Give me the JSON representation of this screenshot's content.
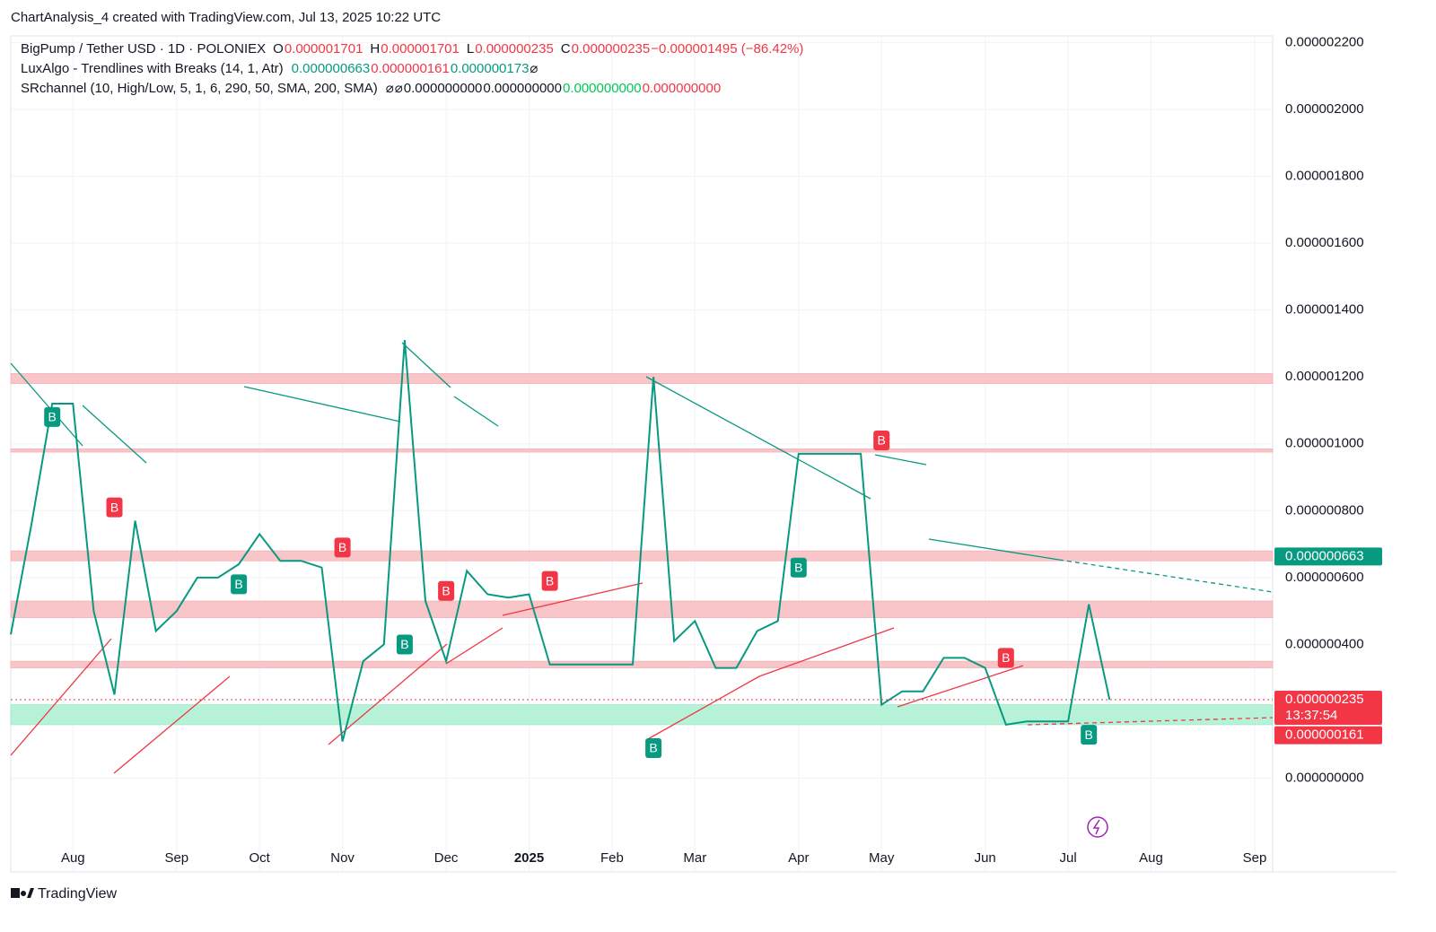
{
  "header": "ChartAnalysis_4 created with TradingView.com, Jul 13, 2025 10:22 UTC",
  "footer": "TradingView",
  "legend_rows": [
    [
      {
        "text": "BigPump / Tether USD · 1D · POLONIEX",
        "color": "#131722"
      },
      {
        "text": "O",
        "color": "#131722"
      },
      {
        "text": "0.000001701",
        "color": "#f23645"
      },
      {
        "text": "H",
        "color": "#131722"
      },
      {
        "text": "0.000001701",
        "color": "#f23645"
      },
      {
        "text": "L",
        "color": "#131722"
      },
      {
        "text": "0.000000235",
        "color": "#f23645"
      },
      {
        "text": "C",
        "color": "#131722"
      },
      {
        "text": "0.000000235",
        "color": "#f23645"
      },
      {
        "text": "−0.000001495 (−86.42%)",
        "color": "#f23645"
      }
    ],
    [
      {
        "text": "LuxAlgo - Trendlines with Breaks (14, 1, Atr)",
        "color": "#131722"
      },
      {
        "text": "0.000000663",
        "color": "#089981"
      },
      {
        "text": "0.000000161",
        "color": "#f23645"
      },
      {
        "text": "0.000000173",
        "color": "#089981"
      },
      {
        "text": "⌀",
        "color": "#131722"
      }
    ],
    [
      {
        "text": "SRchannel (10, High/Low, 5, 1, 6, 290, 50, SMA, 200, SMA)",
        "color": "#131722"
      },
      {
        "text": "⌀",
        "color": "#131722"
      },
      {
        "text": "⌀",
        "color": "#131722"
      },
      {
        "text": "0.000000000",
        "color": "#131722"
      },
      {
        "text": "0.000000000",
        "color": "#131722"
      },
      {
        "text": "0.000000000",
        "color": "#00c853"
      },
      {
        "text": "0.000000000",
        "color": "#f23645"
      }
    ]
  ],
  "chart_data": {
    "type": "line",
    "color": "#089981",
    "grid": true,
    "ylim": [
      -2.8e-07,
      2.3e-06
    ],
    "yticks": [
      {
        "value": 0,
        "label": "0.000000000"
      },
      {
        "value": 2e-07,
        "label": "0.000000200"
      },
      {
        "value": 4e-07,
        "label": "0.000000400"
      },
      {
        "value": 6e-07,
        "label": "0.000000600"
      },
      {
        "value": 8e-07,
        "label": "0.000000800"
      },
      {
        "value": 1e-06,
        "label": "0.000001000"
      },
      {
        "value": 1.2e-06,
        "label": "0.000001200"
      },
      {
        "value": 1.4e-06,
        "label": "0.000001400"
      },
      {
        "value": 1.6e-06,
        "label": "0.000001600"
      },
      {
        "value": 1.8e-06,
        "label": "0.000001800"
      },
      {
        "value": 2e-06,
        "label": "0.000002000"
      },
      {
        "value": 2.2e-06,
        "label": "0.000002200"
      }
    ],
    "categories": [
      null,
      null,
      null,
      "Aug",
      null,
      null,
      null,
      null,
      "Sep",
      null,
      null,
      null,
      "Oct",
      null,
      null,
      null,
      "Nov",
      null,
      null,
      null,
      null,
      "Dec",
      null,
      null,
      null,
      "2025",
      null,
      null,
      null,
      "Feb",
      null,
      null,
      null,
      "Mar",
      null,
      null,
      null,
      null,
      "Apr",
      null,
      null,
      null,
      "May",
      null,
      null,
      null,
      null,
      "Jun",
      null,
      null,
      null,
      "Jul",
      null,
      null,
      null,
      "Aug",
      null,
      null,
      null,
      null,
      "Sep"
    ],
    "values": [
      4.3e-07,
      7.6e-07,
      1.12e-06,
      1.12e-06,
      5e-07,
      2.5e-07,
      7.7e-07,
      4.4e-07,
      5e-07,
      6e-07,
      6e-07,
      6.4e-07,
      7.3e-07,
      6.5e-07,
      6.5e-07,
      6.3e-07,
      1.1e-07,
      3.5e-07,
      4e-07,
      1.31e-06,
      5.3e-07,
      3.5e-07,
      6.2e-07,
      5.5e-07,
      5.4e-07,
      5.5e-07,
      3.4e-07,
      3.4e-07,
      3.4e-07,
      3.4e-07,
      3.4e-07,
      1.2e-06,
      4.1e-07,
      4.7e-07,
      3.3e-07,
      3.3e-07,
      4.4e-07,
      4.7e-07,
      9.7e-07,
      9.7e-07,
      9.7e-07,
      9.7e-07,
      2.2e-07,
      2.6e-07,
      2.6e-07,
      3.6e-07,
      3.6e-07,
      3.3e-07,
      1.6e-07,
      1.7e-07,
      1.7e-07,
      1.7e-07,
      5.2e-07,
      2.35e-07,
      null,
      null,
      null,
      null,
      null,
      null,
      null
    ],
    "signal_label": "B",
    "break_up": [
      null,
      null,
      1.08e-06,
      null,
      null,
      null,
      null,
      null,
      null,
      null,
      null,
      5.8e-07,
      null,
      null,
      null,
      null,
      null,
      null,
      null,
      4e-07,
      null,
      null,
      null,
      null,
      null,
      null,
      null,
      null,
      null,
      null,
      null,
      9e-08,
      null,
      null,
      null,
      null,
      null,
      null,
      6.3e-07,
      null,
      null,
      null,
      null,
      null,
      null,
      null,
      null,
      null,
      null,
      null,
      null,
      null,
      1.3e-07,
      null,
      null,
      null,
      null,
      null,
      null,
      null,
      null
    ],
    "break_down": [
      null,
      null,
      null,
      null,
      null,
      8.1e-07,
      null,
      null,
      null,
      null,
      null,
      null,
      null,
      null,
      null,
      null,
      6.9e-07,
      null,
      null,
      null,
      null,
      5.6e-07,
      null,
      null,
      null,
      null,
      5.9e-07,
      null,
      null,
      null,
      null,
      null,
      null,
      null,
      null,
      null,
      null,
      null,
      null,
      null,
      null,
      null,
      1.01e-06,
      null,
      null,
      null,
      null,
      null,
      3.6e-07,
      null,
      null,
      null,
      null,
      null,
      null,
      null,
      null,
      null,
      null,
      null,
      null
    ],
    "zones": [
      {
        "low": 1.18e-06,
        "high": 1.21e-06,
        "color": "#f8c5c8"
      },
      {
        "low": 9.75e-07,
        "high": 9.85e-07,
        "color": "#f8c5c8"
      },
      {
        "low": 6.5e-07,
        "high": 6.8e-07,
        "color": "#f8c5c8"
      },
      {
        "low": 4.8e-07,
        "high": 5.3e-07,
        "color": "#f8c5c8"
      },
      {
        "low": 3.3e-07,
        "high": 3.5e-07,
        "color": "#f8c5c8"
      },
      {
        "low": 1.6e-07,
        "high": 2.2e-07,
        "color": "#b5f2d8"
      }
    ],
    "price_labels": [
      {
        "value": 6.63e-07,
        "label": "0.000000663",
        "color": "#089981"
      },
      {
        "value": 2.35e-07,
        "label": "0.000000235",
        "color": "#f23645"
      },
      {
        "value": 1.61e-07,
        "label": "0.000000161",
        "color": "#f23645"
      }
    ],
    "countdown": "13:37:54"
  }
}
